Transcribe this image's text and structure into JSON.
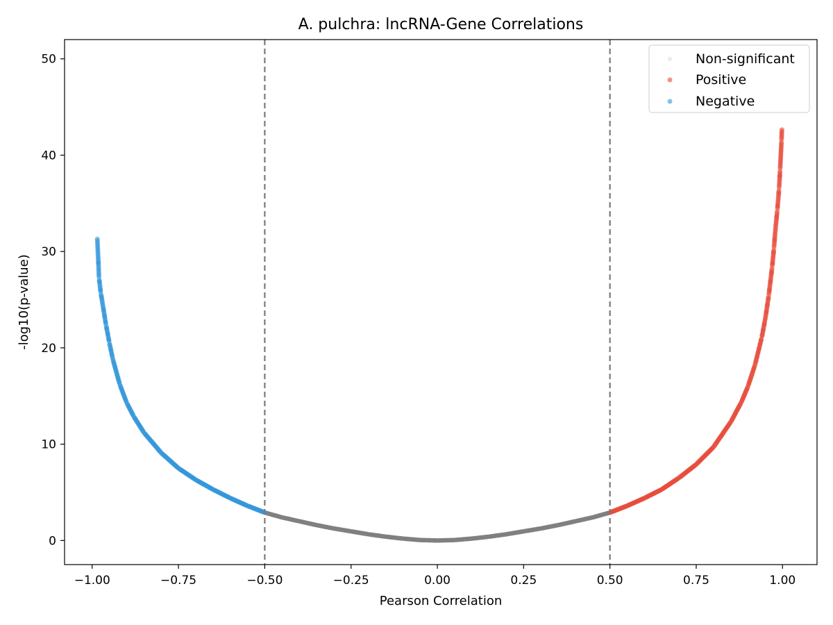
{
  "chart_data": {
    "type": "scatter",
    "title": "A. pulchra: lncRNA-Gene Correlations",
    "xlabel": "Pearson Correlation",
    "ylabel": "-log10(p-value)",
    "xlim": [
      -1.08,
      1.1
    ],
    "ylim": [
      -2.5,
      52.0
    ],
    "xticks": [
      -1.0,
      -0.75,
      -0.5,
      -0.25,
      0.0,
      0.25,
      0.5,
      0.75,
      1.0
    ],
    "xtick_labels": [
      "−1.00",
      "−0.75",
      "−0.50",
      "−0.25",
      "0.00",
      "0.25",
      "0.50",
      "0.75",
      "1.00"
    ],
    "yticks": [
      0,
      10,
      20,
      30,
      40,
      50
    ],
    "ytick_labels": [
      "0",
      "10",
      "20",
      "30",
      "40",
      "50"
    ],
    "grid": false,
    "legend_position": "top-right",
    "thresholds": [
      -0.5,
      0.5
    ],
    "threshold_style": "dashed gray vertical lines",
    "colors": {
      "nonsignificant": "#7f7f7f",
      "positive": "#e74c3c",
      "negative": "#3498db",
      "threshold": "#7a7a7a"
    },
    "series": [
      {
        "name": "Non-significant",
        "color": "#7f7f7f",
        "r": [
          -0.5,
          -0.45,
          -0.4,
          -0.35,
          -0.3,
          -0.25,
          -0.2,
          -0.15,
          -0.1,
          -0.05,
          0.0,
          0.05,
          0.1,
          0.15,
          0.2,
          0.25,
          0.3,
          0.35,
          0.4,
          0.45,
          0.5
        ],
        "neglog10p": [
          2.9,
          2.4,
          2.0,
          1.6,
          1.25,
          0.95,
          0.65,
          0.4,
          0.2,
          0.05,
          0.0,
          0.05,
          0.2,
          0.4,
          0.65,
          0.95,
          1.25,
          1.6,
          2.0,
          2.4,
          2.9
        ]
      },
      {
        "name": "Positive",
        "color": "#e74c3c",
        "r": [
          0.5,
          0.55,
          0.6,
          0.65,
          0.7,
          0.75,
          0.8,
          0.85,
          0.88,
          0.9,
          0.92,
          0.94,
          0.95,
          0.96,
          0.97,
          0.975,
          0.98,
          0.985,
          0.99,
          0.993,
          0.995,
          0.997,
          0.998,
          0.999
        ],
        "neglog10p": [
          2.9,
          3.6,
          4.4,
          5.3,
          6.5,
          7.9,
          9.7,
          12.3,
          14.3,
          16.0,
          18.2,
          21.1,
          23.0,
          25.4,
          28.4,
          30.3,
          32.5,
          34.3,
          36.5,
          38.5,
          40.0,
          41.5,
          42.5,
          42.8
        ]
      },
      {
        "name": "Negative",
        "color": "#3498db",
        "r": [
          -0.5,
          -0.55,
          -0.6,
          -0.65,
          -0.7,
          -0.75,
          -0.8,
          -0.85,
          -0.88,
          -0.9,
          -0.92,
          -0.94,
          -0.95,
          -0.96,
          -0.97,
          -0.975,
          -0.98,
          -0.985
        ],
        "neglog10p": [
          2.9,
          3.6,
          4.4,
          5.3,
          6.3,
          7.5,
          9.1,
          11.2,
          12.9,
          14.3,
          16.2,
          18.8,
          20.5,
          22.4,
          24.6,
          25.7,
          27.2,
          31.3
        ]
      }
    ]
  }
}
